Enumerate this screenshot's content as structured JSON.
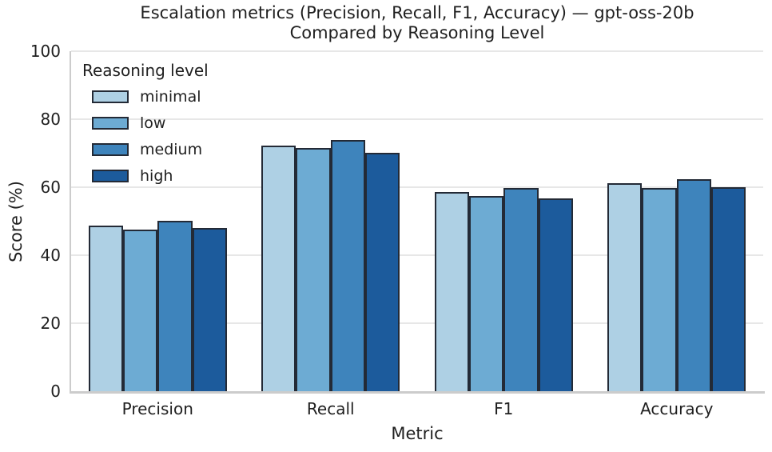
{
  "chart": {
    "title_line1": "Escalation metrics (Precision, Recall, F1, Accuracy) — gpt-oss-20b",
    "title_line2": "Compared by Reasoning Level",
    "xlabel": "Metric",
    "ylabel": "Score (%)"
  },
  "chart_data": {
    "type": "bar",
    "title": "Escalation metrics (Precision, Recall, F1, Accuracy) — gpt-oss-20b — Compared by Reasoning Level",
    "xlabel": "Metric",
    "ylabel": "Score (%)",
    "categories": [
      "Precision",
      "Recall",
      "F1",
      "Accuracy"
    ],
    "series": [
      {
        "name": "minimal",
        "color": "#aed0e4",
        "values": [
          48.8,
          72.3,
          58.5,
          61.1
        ]
      },
      {
        "name": "low",
        "color": "#6dabd3",
        "values": [
          47.6,
          71.6,
          57.3,
          59.7
        ]
      },
      {
        "name": "medium",
        "color": "#3e84bc",
        "values": [
          50.1,
          74.0,
          59.8,
          62.3
        ]
      },
      {
        "name": "high",
        "color": "#1c5b9c",
        "values": [
          47.9,
          70.2,
          56.8,
          59.9
        ]
      }
    ],
    "ylim": [
      0,
      100
    ],
    "yticks": [
      0,
      20,
      40,
      60,
      80,
      100
    ],
    "grid": true,
    "legend_title": "Reasoning level",
    "legend_position": "upper left",
    "bar_edge_color": "#232a36"
  }
}
